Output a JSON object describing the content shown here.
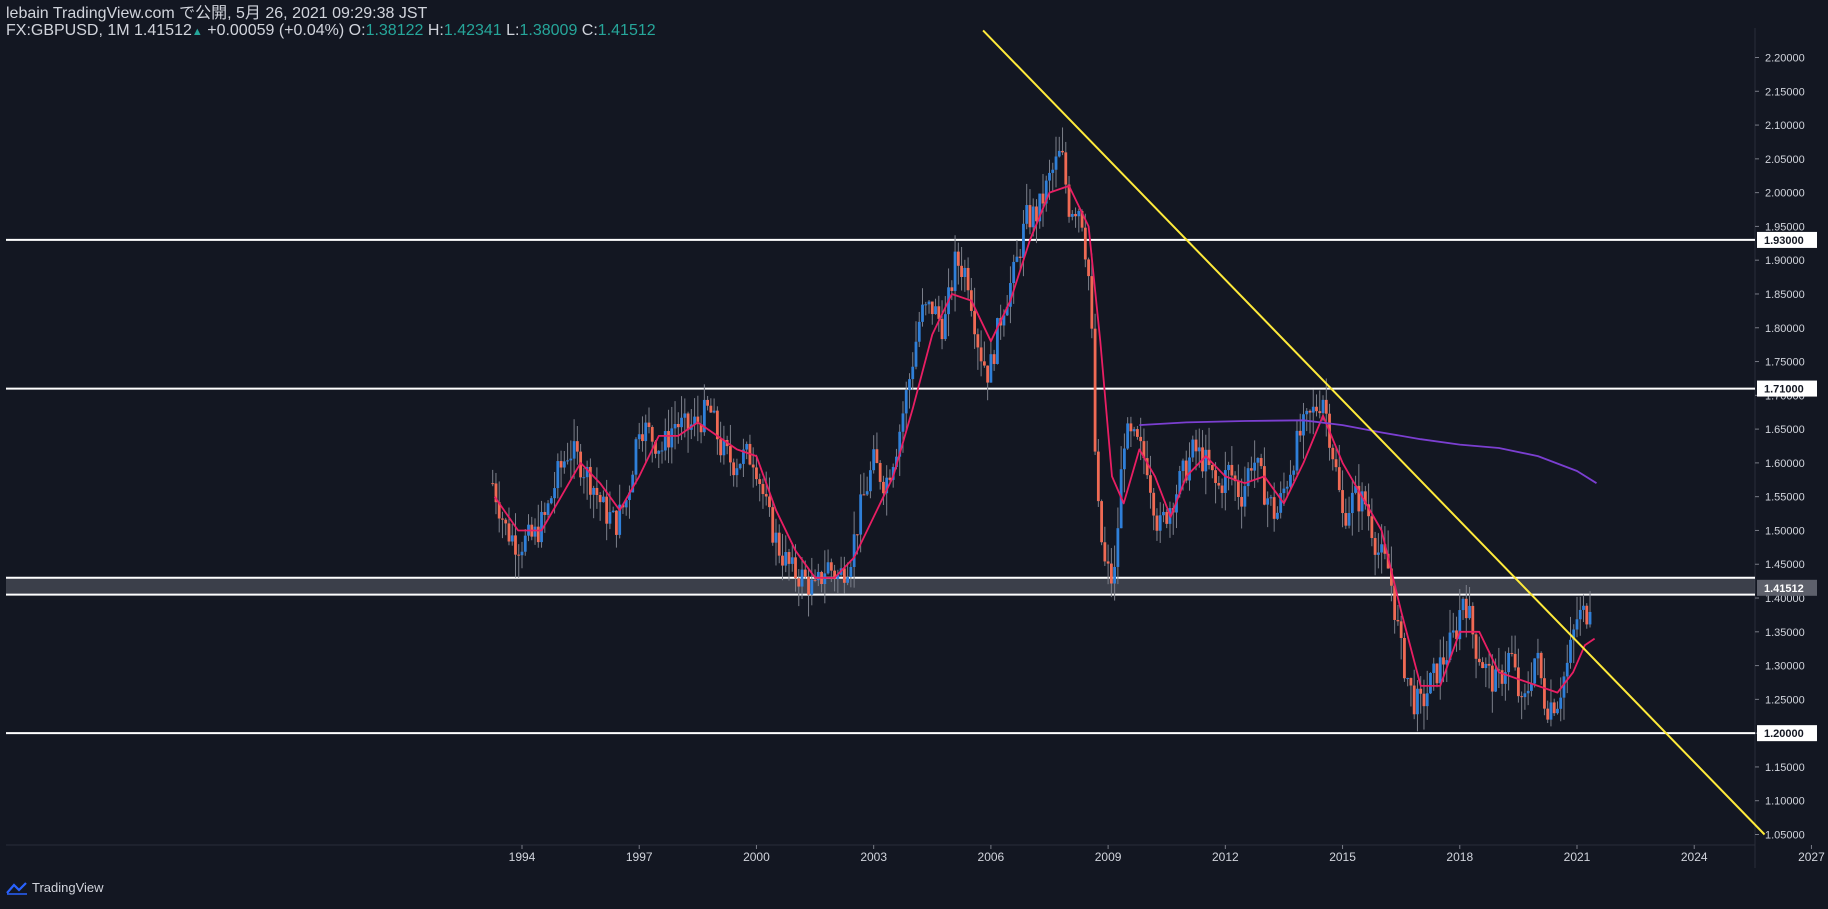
{
  "header": {
    "publisher": "lebain TradingView.com で公開, 5月 26, 2021 09:29:38 JST",
    "symbol": "FX:GBPUSD, 1M",
    "last": "1.41512",
    "change_arrow": "▲",
    "change": "+0.00059 (+0.04%)",
    "o_label": "O:",
    "o_value": "1.38122",
    "h_label": "H:",
    "h_value": "1.42341",
    "l_label": "L:",
    "l_value": "1.38009",
    "c_label": "C:",
    "c_value": "1.41512"
  },
  "footer": {
    "brand": "TradingView",
    "logo_icon": "tradingview-logo-icon"
  },
  "colors": {
    "background": "#131722",
    "up": "#2f7fd8",
    "down": "#ef6a54",
    "ma_fast": "#e91e63",
    "ma_slow": "#7b3fd1",
    "trendline": "#ffeb3b",
    "levels": "#ffffff",
    "axis_text": "#d1d4dc"
  },
  "chart_data": {
    "type": "candlestick",
    "symbol": "GBPUSD",
    "interval": "1M",
    "x_ticks": [
      "1994",
      "1997",
      "2000",
      "2003",
      "2006",
      "2009",
      "2012",
      "2015",
      "2018",
      "2021",
      "2024",
      "2027"
    ],
    "x_range": [
      1992.1,
      2029.4
    ],
    "y_ticks": [
      "1.05000",
      "1.10000",
      "1.15000",
      "1.20000",
      "1.25000",
      "1.30000",
      "1.35000",
      "1.40000",
      "1.45000",
      "1.50000",
      "1.55000",
      "1.60000",
      "1.65000",
      "1.70000",
      "1.75000",
      "1.80000",
      "1.85000",
      "1.90000",
      "1.95000",
      "2.00000",
      "2.05000",
      "2.10000",
      "2.15000",
      "2.20000"
    ],
    "y_range": [
      1.05,
      2.2
    ],
    "horizontal_levels": [
      {
        "value": 1.93,
        "label": "1.93000"
      },
      {
        "value": 1.71,
        "label": "1.71000"
      },
      {
        "value": 1.2,
        "label": "1.20000"
      }
    ],
    "zone": {
      "from": 1.405,
      "to": 1.43
    },
    "last_price": {
      "value": 1.41512,
      "label": "1.41512"
    },
    "trendline": {
      "from": {
        "x": 2005.8,
        "y": 2.24
      },
      "to": {
        "x": 2025.8,
        "y": 1.05
      }
    },
    "price_path": [
      [
        1993.25,
        1.57
      ],
      [
        1993.6,
        1.5
      ],
      [
        1993.9,
        1.48
      ],
      [
        1994.3,
        1.49
      ],
      [
        1994.6,
        1.52
      ],
      [
        1994.9,
        1.58
      ],
      [
        1995.2,
        1.62
      ],
      [
        1995.5,
        1.6
      ],
      [
        1995.8,
        1.57
      ],
      [
        1996.1,
        1.53
      ],
      [
        1996.4,
        1.51
      ],
      [
        1996.7,
        1.55
      ],
      [
        1997.0,
        1.66
      ],
      [
        1997.3,
        1.64
      ],
      [
        1997.6,
        1.62
      ],
      [
        1997.9,
        1.66
      ],
      [
        1998.2,
        1.65
      ],
      [
        1998.5,
        1.66
      ],
      [
        1998.8,
        1.68
      ],
      [
        1999.1,
        1.62
      ],
      [
        1999.4,
        1.6
      ],
      [
        1999.7,
        1.61
      ],
      [
        1999.95,
        1.61
      ],
      [
        2000.3,
        1.52
      ],
      [
        2000.6,
        1.47
      ],
      [
        2000.9,
        1.44
      ],
      [
        2001.2,
        1.43
      ],
      [
        2001.5,
        1.41
      ],
      [
        2001.8,
        1.45
      ],
      [
        2002.1,
        1.43
      ],
      [
        2002.4,
        1.46
      ],
      [
        2002.7,
        1.54
      ],
      [
        2003.0,
        1.6
      ],
      [
        2003.3,
        1.57
      ],
      [
        2003.6,
        1.63
      ],
      [
        2003.9,
        1.72
      ],
      [
        2004.2,
        1.82
      ],
      [
        2004.5,
        1.83
      ],
      [
        2004.8,
        1.8
      ],
      [
        2005.1,
        1.9
      ],
      [
        2005.4,
        1.88
      ],
      [
        2005.7,
        1.77
      ],
      [
        2005.95,
        1.73
      ],
      [
        2006.3,
        1.83
      ],
      [
        2006.6,
        1.88
      ],
      [
        2006.9,
        1.96
      ],
      [
        2007.2,
        1.97
      ],
      [
        2007.5,
        2.02
      ],
      [
        2007.8,
        2.06
      ],
      [
        2008.0,
        1.98
      ],
      [
        2008.3,
        1.98
      ],
      [
        2008.55,
        1.85
      ],
      [
        2008.7,
        1.55
      ],
      [
        2008.9,
        1.45
      ],
      [
        2009.15,
        1.42
      ],
      [
        2009.4,
        1.64
      ],
      [
        2009.7,
        1.63
      ],
      [
        2010.0,
        1.6
      ],
      [
        2010.3,
        1.5
      ],
      [
        2010.6,
        1.54
      ],
      [
        2010.9,
        1.58
      ],
      [
        2011.2,
        1.62
      ],
      [
        2011.5,
        1.6
      ],
      [
        2011.8,
        1.56
      ],
      [
        2012.1,
        1.59
      ],
      [
        2012.4,
        1.55
      ],
      [
        2012.7,
        1.61
      ],
      [
        2013.0,
        1.56
      ],
      [
        2013.3,
        1.52
      ],
      [
        2013.6,
        1.58
      ],
      [
        2013.9,
        1.64
      ],
      [
        2014.2,
        1.67
      ],
      [
        2014.5,
        1.7
      ],
      [
        2014.8,
        1.6
      ],
      [
        2015.0,
        1.52
      ],
      [
        2015.3,
        1.55
      ],
      [
        2015.6,
        1.54
      ],
      [
        2015.9,
        1.47
      ],
      [
        2016.2,
        1.44
      ],
      [
        2016.5,
        1.32
      ],
      [
        2016.8,
        1.25
      ],
      [
        2017.0,
        1.24
      ],
      [
        2017.3,
        1.28
      ],
      [
        2017.6,
        1.31
      ],
      [
        2017.9,
        1.35
      ],
      [
        2018.1,
        1.41
      ],
      [
        2018.4,
        1.33
      ],
      [
        2018.7,
        1.29
      ],
      [
        2018.95,
        1.27
      ],
      [
        2019.3,
        1.32
      ],
      [
        2019.6,
        1.23
      ],
      [
        2019.95,
        1.32
      ],
      [
        2020.2,
        1.24
      ],
      [
        2020.5,
        1.25
      ],
      [
        2020.75,
        1.3
      ],
      [
        2021.0,
        1.37
      ],
      [
        2021.25,
        1.38
      ],
      [
        2021.4,
        1.41512
      ]
    ],
    "series": [
      {
        "name": "",
        "type": "ma_fast",
        "values": [
          [
            1993.3,
            1.55
          ],
          [
            1993.9,
            1.5
          ],
          [
            1994.5,
            1.5
          ],
          [
            1995.0,
            1.55
          ],
          [
            1995.5,
            1.6
          ],
          [
            1996.0,
            1.57
          ],
          [
            1996.5,
            1.53
          ],
          [
            1997.0,
            1.58
          ],
          [
            1997.5,
            1.64
          ],
          [
            1998.0,
            1.64
          ],
          [
            1998.5,
            1.66
          ],
          [
            1999.0,
            1.64
          ],
          [
            1999.5,
            1.62
          ],
          [
            2000.0,
            1.61
          ],
          [
            2000.5,
            1.53
          ],
          [
            2001.0,
            1.47
          ],
          [
            2001.5,
            1.43
          ],
          [
            2002.0,
            1.43
          ],
          [
            2002.5,
            1.46
          ],
          [
            2003.0,
            1.52
          ],
          [
            2003.5,
            1.58
          ],
          [
            2004.0,
            1.68
          ],
          [
            2004.5,
            1.79
          ],
          [
            2005.0,
            1.85
          ],
          [
            2005.5,
            1.84
          ],
          [
            2006.0,
            1.78
          ],
          [
            2006.5,
            1.84
          ],
          [
            2007.0,
            1.93
          ],
          [
            2007.5,
            2.0
          ],
          [
            2008.0,
            2.01
          ],
          [
            2008.5,
            1.95
          ],
          [
            2008.8,
            1.78
          ],
          [
            2009.1,
            1.58
          ],
          [
            2009.4,
            1.54
          ],
          [
            2009.8,
            1.62
          ],
          [
            2010.2,
            1.58
          ],
          [
            2010.6,
            1.52
          ],
          [
            2011.0,
            1.58
          ],
          [
            2011.5,
            1.61
          ],
          [
            2012.0,
            1.58
          ],
          [
            2012.5,
            1.57
          ],
          [
            2013.0,
            1.58
          ],
          [
            2013.5,
            1.54
          ],
          [
            2014.0,
            1.6
          ],
          [
            2014.5,
            1.67
          ],
          [
            2015.0,
            1.6
          ],
          [
            2015.5,
            1.55
          ],
          [
            2016.0,
            1.5
          ],
          [
            2016.5,
            1.38
          ],
          [
            2017.0,
            1.27
          ],
          [
            2017.5,
            1.27
          ],
          [
            2018.0,
            1.35
          ],
          [
            2018.5,
            1.35
          ],
          [
            2019.0,
            1.29
          ],
          [
            2019.5,
            1.28
          ],
          [
            2020.0,
            1.27
          ],
          [
            2020.5,
            1.26
          ],
          [
            2020.9,
            1.29
          ],
          [
            2021.2,
            1.33
          ],
          [
            2021.45,
            1.34
          ]
        ]
      },
      {
        "name": "",
        "type": "ma_slow",
        "values": [
          [
            2009.8,
            1.656
          ],
          [
            2011.0,
            1.66
          ],
          [
            2012.5,
            1.662
          ],
          [
            2014.0,
            1.663
          ],
          [
            2015.0,
            1.656
          ],
          [
            2016.0,
            1.645
          ],
          [
            2017.0,
            1.635
          ],
          [
            2018.0,
            1.627
          ],
          [
            2019.0,
            1.622
          ],
          [
            2020.0,
            1.61
          ],
          [
            2021.0,
            1.588
          ],
          [
            2021.5,
            1.57
          ]
        ]
      }
    ]
  }
}
